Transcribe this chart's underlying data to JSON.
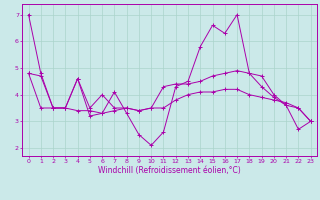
{
  "xlabel": "Windchill (Refroidissement éolien,°C)",
  "background_color": "#cbe9e9",
  "grid_color": "#aad4cc",
  "line_color": "#aa00aa",
  "x_hours": [
    0,
    1,
    2,
    3,
    4,
    5,
    6,
    7,
    8,
    9,
    10,
    11,
    12,
    13,
    14,
    15,
    16,
    17,
    18,
    19,
    20,
    21,
    22,
    23
  ],
  "line1": [
    7.0,
    4.8,
    3.5,
    3.5,
    4.6,
    3.2,
    3.3,
    4.1,
    3.3,
    2.5,
    2.1,
    2.6,
    4.3,
    4.5,
    5.8,
    6.6,
    6.3,
    7.0,
    4.8,
    4.7,
    4.0,
    3.6,
    2.7,
    3.0
  ],
  "line2": [
    4.8,
    4.7,
    3.5,
    3.5,
    4.6,
    3.5,
    4.0,
    3.5,
    3.5,
    3.4,
    3.5,
    4.3,
    4.4,
    4.4,
    4.5,
    4.7,
    4.8,
    4.9,
    4.8,
    4.3,
    3.9,
    3.6,
    3.5,
    3.0
  ],
  "line3": [
    4.8,
    3.5,
    3.5,
    3.5,
    3.4,
    3.4,
    3.3,
    3.4,
    3.5,
    3.4,
    3.5,
    3.5,
    3.8,
    4.0,
    4.1,
    4.1,
    4.2,
    4.2,
    4.0,
    3.9,
    3.8,
    3.7,
    3.5,
    3.0
  ],
  "ylim": [
    1.7,
    7.4
  ],
  "yticks": [
    2,
    3,
    4,
    5,
    6,
    7
  ],
  "ylabel_fontsize": 5.5,
  "xlabel_fontsize": 5.5,
  "tick_fontsize": 4.5
}
